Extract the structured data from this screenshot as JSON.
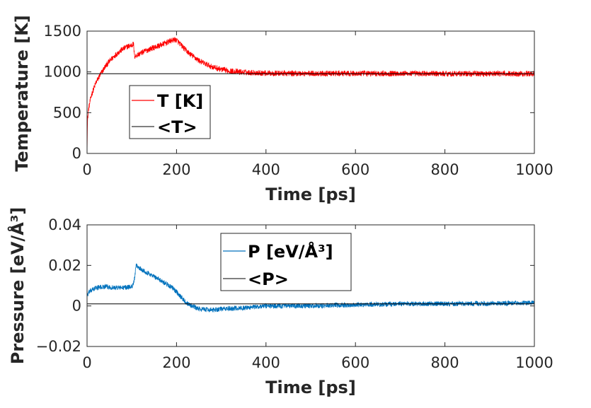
{
  "chart_data": [
    {
      "type": "line",
      "title": "",
      "xlabel": "Time [ps]",
      "ylabel": "Temperature [K]",
      "xlim": [
        0,
        1000
      ],
      "ylim": [
        0,
        1500
      ],
      "xticks": [
        0,
        200,
        400,
        600,
        800,
        1000
      ],
      "yticks": [
        0,
        500,
        1000,
        1500
      ],
      "xtick_labels": [
        "0",
        "200",
        "400",
        "600",
        "800",
        "1000"
      ],
      "ytick_labels": [
        "0",
        "500",
        "1000",
        "1500"
      ],
      "grid": false,
      "legend": "center-left",
      "series": [
        {
          "name": "T [K]",
          "color": "#ff0000",
          "noise": 35,
          "x": [
            0,
            1,
            3,
            6,
            10,
            20,
            30,
            40,
            50,
            60,
            70,
            80,
            90,
            100,
            104,
            106,
            110,
            120,
            130,
            140,
            150,
            160,
            170,
            180,
            190,
            195,
            200,
            210,
            220,
            230,
            240,
            250,
            260,
            280,
            300,
            320,
            350,
            400,
            500,
            600,
            700,
            800,
            900,
            1000
          ],
          "y": [
            0,
            400,
            530,
            620,
            720,
            870,
            970,
            1060,
            1130,
            1190,
            1240,
            1280,
            1310,
            1330,
            1340,
            1190,
            1200,
            1230,
            1255,
            1280,
            1300,
            1320,
            1340,
            1365,
            1385,
            1395,
            1390,
            1330,
            1270,
            1220,
            1180,
            1140,
            1110,
            1060,
            1030,
            1010,
            995,
            985,
            980,
            980,
            980,
            978,
            978,
            978
          ]
        },
        {
          "name": "<T>",
          "color": "#000000",
          "x": [
            0,
            1000
          ],
          "y": [
            978,
            978
          ]
        }
      ]
    },
    {
      "type": "line",
      "title": "",
      "xlabel": "Time [ps]",
      "ylabel": "Pressure [eV/Å³]",
      "xlim": [
        0,
        1000
      ],
      "ylim": [
        -0.02,
        0.04
      ],
      "xticks": [
        0,
        200,
        400,
        600,
        800,
        1000
      ],
      "yticks": [
        -0.02,
        0,
        0.02,
        0.04
      ],
      "xtick_labels": [
        "0",
        "200",
        "400",
        "600",
        "800",
        "1000"
      ],
      "ytick_labels": [
        "−0.02",
        "0",
        "0.02",
        "0.04"
      ],
      "grid": false,
      "legend": "top-right",
      "series": [
        {
          "name": "P [eV/Å³]",
          "color": "#0072bd",
          "noise": 0.0012,
          "x": [
            0,
            5,
            20,
            40,
            60,
            80,
            100,
            105,
            110,
            115,
            130,
            150,
            170,
            190,
            200,
            210,
            220,
            230,
            250,
            280,
            300,
            350,
            400,
            500,
            600,
            700,
            800,
            900,
            1000
          ],
          "y": [
            0.005,
            0.007,
            0.009,
            0.0095,
            0.009,
            0.009,
            0.0095,
            0.012,
            0.02,
            0.019,
            0.017,
            0.0145,
            0.012,
            0.009,
            0.007,
            0.0045,
            0.002,
            0.0005,
            -0.0015,
            -0.002,
            -0.0015,
            -0.001,
            0,
            0,
            0.0005,
            0.001,
            0.001,
            0.0012,
            0.0015
          ]
        },
        {
          "name": "<P>",
          "color": "#000000",
          "x": [
            0,
            1000
          ],
          "y": [
            0.001,
            0.001
          ]
        }
      ]
    }
  ]
}
